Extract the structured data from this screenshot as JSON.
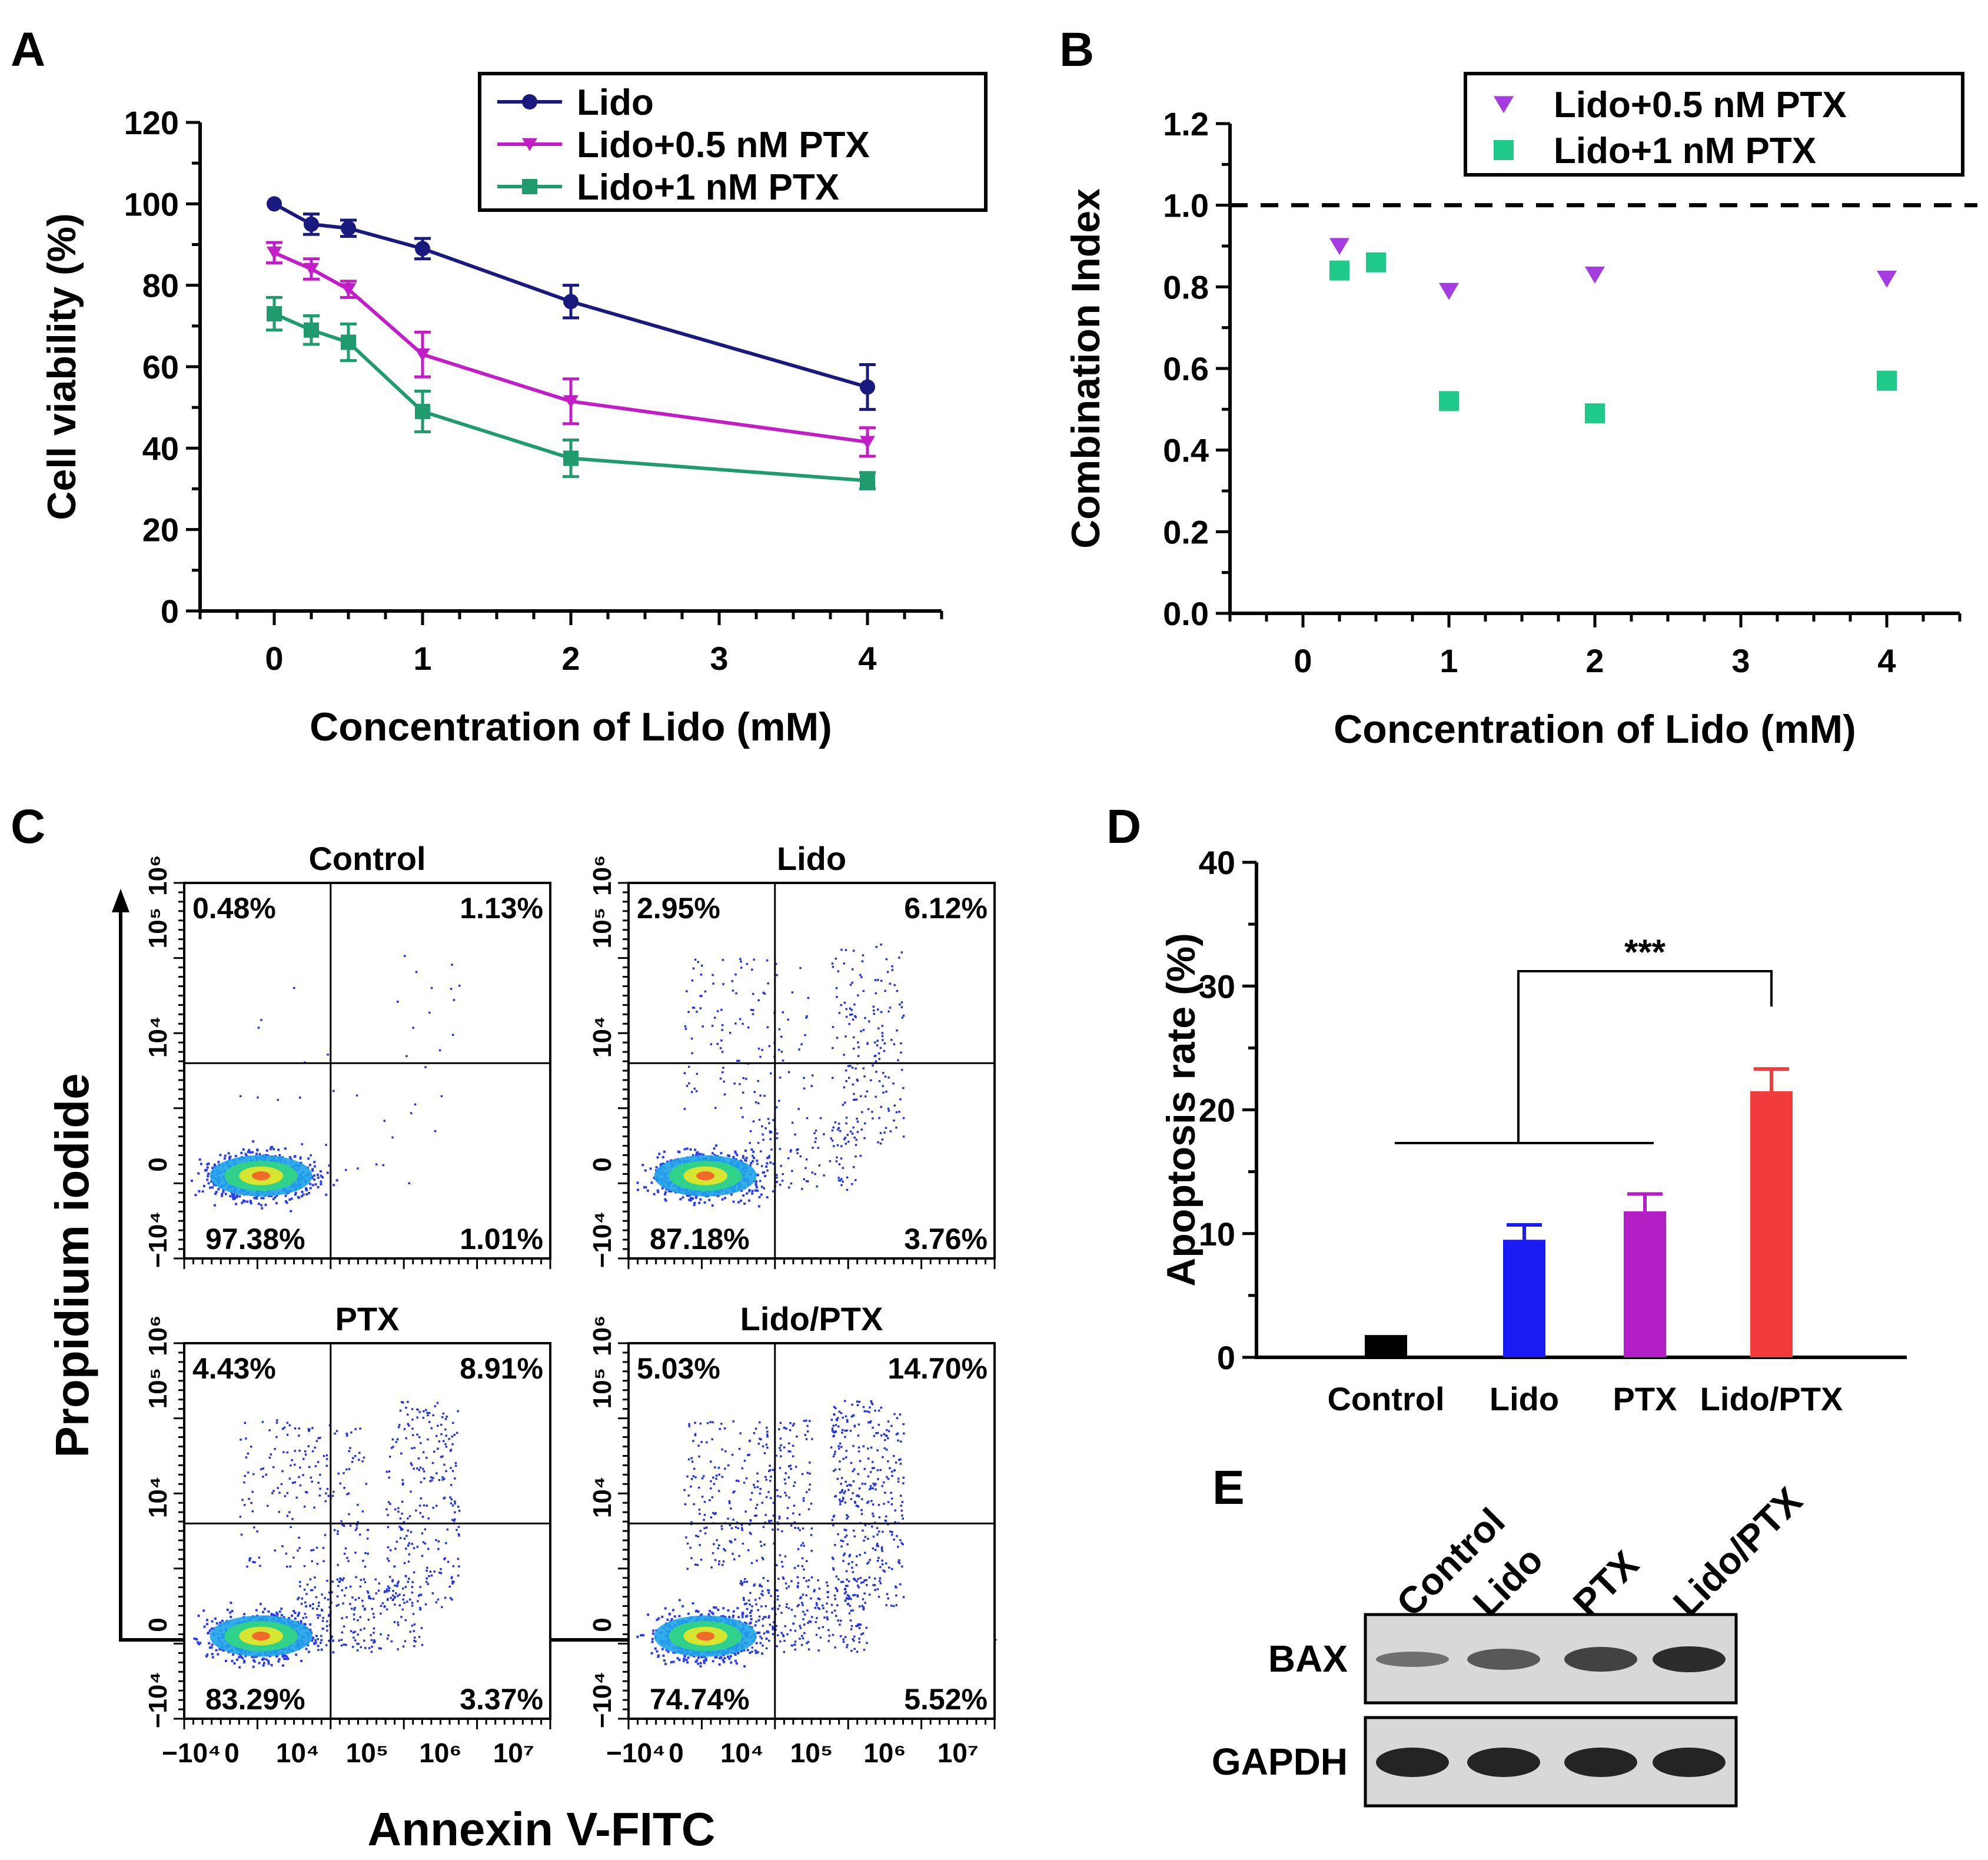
{
  "colors": {
    "lido": "#1a1a7e",
    "pt05": "#c21dc7",
    "pt1": "#1f9b6e",
    "ci05": "#a43ce0",
    "ci1": "#1ec98a",
    "bar_control": "#000000",
    "bar_lido": "#1a1af2",
    "bar_ptx": "#b21fc4",
    "bar_lidoptx": "#f23b3b"
  },
  "panels": {
    "a": "A",
    "b": "B",
    "c": "C",
    "d": "D",
    "e": "E"
  },
  "chart_data": [
    {
      "id": "A",
      "type": "line",
      "xlabel": "Concentration of Lido (mM)",
      "ylabel": "Cell viability (%)",
      "xlim": [
        -0.5,
        4.5
      ],
      "ylim": [
        0,
        120
      ],
      "x_ticks": [
        0,
        1,
        2,
        3,
        4
      ],
      "y_ticks": [
        0,
        20,
        40,
        60,
        80,
        100,
        120
      ],
      "series": [
        {
          "name": "Lido",
          "marker": "circle",
          "color": "#1a1a7e",
          "x": [
            0,
            0.25,
            0.5,
            1,
            2,
            4
          ],
          "y": [
            100,
            95,
            94,
            89,
            76,
            55
          ],
          "err": [
            0,
            2.5,
            2,
            2.5,
            4,
            5.5
          ]
        },
        {
          "name": "Lido+0.5 nM PTX",
          "marker": "tri-down",
          "color": "#c21dc7",
          "x": [
            0,
            0.25,
            0.5,
            1,
            2,
            4
          ],
          "y": [
            88,
            84,
            79,
            63,
            51.5,
            41.5
          ],
          "err": [
            2.5,
            2.5,
            2,
            5.5,
            5.5,
            3.5
          ]
        },
        {
          "name": "Lido+1 nM PTX",
          "marker": "square",
          "color": "#1f9b6e",
          "x": [
            0,
            0.25,
            0.5,
            1,
            2,
            4
          ],
          "y": [
            73,
            69,
            66,
            49,
            37.5,
            32
          ],
          "err": [
            4,
            3.5,
            4.5,
            5,
            4.5,
            2
          ]
        }
      ]
    },
    {
      "id": "B",
      "type": "scatter",
      "xlabel": "Concentration of Lido (mM)",
      "ylabel": "Combination Index",
      "xlim": [
        -0.5,
        4.5
      ],
      "ylim": [
        0,
        1.2
      ],
      "x_ticks": [
        0,
        1,
        2,
        3,
        4
      ],
      "y_ticks": [
        "0.0",
        "0.2",
        "0.4",
        "0.6",
        "0.8",
        "1.0",
        "1.2"
      ],
      "reference_line": 1.0,
      "series": [
        {
          "name": "Lido+0.5 nM PTX",
          "marker": "tri-down",
          "color": "#a43ce0",
          "x": [
            0.25,
            0.5,
            1,
            2,
            4
          ],
          "y": [
            0.9,
            0.86,
            0.79,
            0.83,
            0.82
          ]
        },
        {
          "name": "Lido+1 nM PTX",
          "marker": "square",
          "color": "#1ec98a",
          "x": [
            0.25,
            0.5,
            1,
            2,
            4
          ],
          "y": [
            0.84,
            0.86,
            0.52,
            0.49,
            0.57
          ]
        }
      ]
    },
    {
      "id": "C",
      "type": "scatter",
      "xlabel": "Annexin V-FITC",
      "ylabel": "Propidium iodide",
      "x_ticks": [
        "−10⁴",
        "0",
        "10⁴",
        "10⁵",
        "10⁶",
        "10⁷"
      ],
      "y_ticks": [
        "−10⁴",
        "0",
        "10⁴",
        "10⁵",
        "10⁶"
      ],
      "plots": [
        {
          "title": "Control",
          "ul": "0.48%",
          "ur": "1.13%",
          "ll": "97.38%",
          "lr": "1.01%"
        },
        {
          "title": "Lido",
          "ul": "2.95%",
          "ur": "6.12%",
          "ll": "87.18%",
          "lr": "3.76%"
        },
        {
          "title": "PTX",
          "ul": "4.43%",
          "ur": "8.91%",
          "ll": "83.29%",
          "lr": "3.37%"
        },
        {
          "title": "Lido/PTX",
          "ul": "5.03%",
          "ur": "14.70%",
          "ll": "74.74%",
          "lr": "5.52%"
        }
      ]
    },
    {
      "id": "D",
      "type": "bar",
      "ylabel": "Apoptosis rate (%)",
      "ylim": [
        0,
        40
      ],
      "y_ticks": [
        0,
        10,
        20,
        30,
        40
      ],
      "categories": [
        "Control",
        "Lido",
        "PTX",
        "Lido/PTX"
      ],
      "values": [
        1.8,
        9.5,
        11.8,
        21.5
      ],
      "err": [
        0,
        1.2,
        1.4,
        1.8
      ],
      "significance": "***"
    },
    {
      "id": "E",
      "type": "table",
      "lanes": [
        "Control",
        "Lido",
        "PTX",
        "Lido/PTX"
      ],
      "rows": [
        "BAX",
        "GAPDH"
      ]
    }
  ]
}
